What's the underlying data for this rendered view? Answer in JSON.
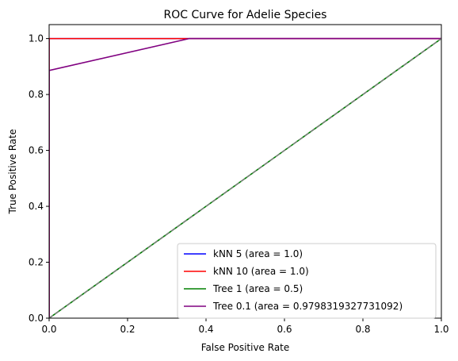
{
  "chart_data": {
    "type": "line",
    "title": "ROC Curve for Adelie Species",
    "xlabel": "False Positive Rate",
    "ylabel": "True Positive Rate",
    "xlim": [
      0.0,
      1.0
    ],
    "ylim": [
      0.0,
      1.05
    ],
    "xticks": [
      "0.0",
      "0.2",
      "0.4",
      "0.6",
      "0.8",
      "1.0"
    ],
    "yticks": [
      "0.0",
      "0.2",
      "0.4",
      "0.6",
      "0.8",
      "1.0"
    ],
    "grid": false,
    "legend_position": "lower-right",
    "series": [
      {
        "name": "kNN 5 (area = 1.0)",
        "color": "#0000ff",
        "x": [
          0.0,
          0.0,
          1.0
        ],
        "y": [
          0.0,
          1.0,
          1.0
        ]
      },
      {
        "name": "kNN 10 (area = 1.0)",
        "color": "#ff0000",
        "x": [
          0.0,
          0.0,
          1.0
        ],
        "y": [
          0.0,
          1.0,
          1.0
        ]
      },
      {
        "name": "Tree 1 (area = 0.5)",
        "color": "#008000",
        "x": [
          0.0,
          1.0
        ],
        "y": [
          0.0,
          1.0
        ]
      },
      {
        "name": "Tree 0.1 (area = 0.9798319327731092)",
        "color": "#800080",
        "x": [
          0.0,
          0.0,
          0.357,
          1.0
        ],
        "y": [
          0.0,
          0.886,
          1.0,
          1.0
        ]
      }
    ],
    "reference_line": {
      "color": "#808080",
      "dash": true,
      "x": [
        0.0,
        1.0
      ],
      "y": [
        0.0,
        1.0
      ]
    }
  }
}
